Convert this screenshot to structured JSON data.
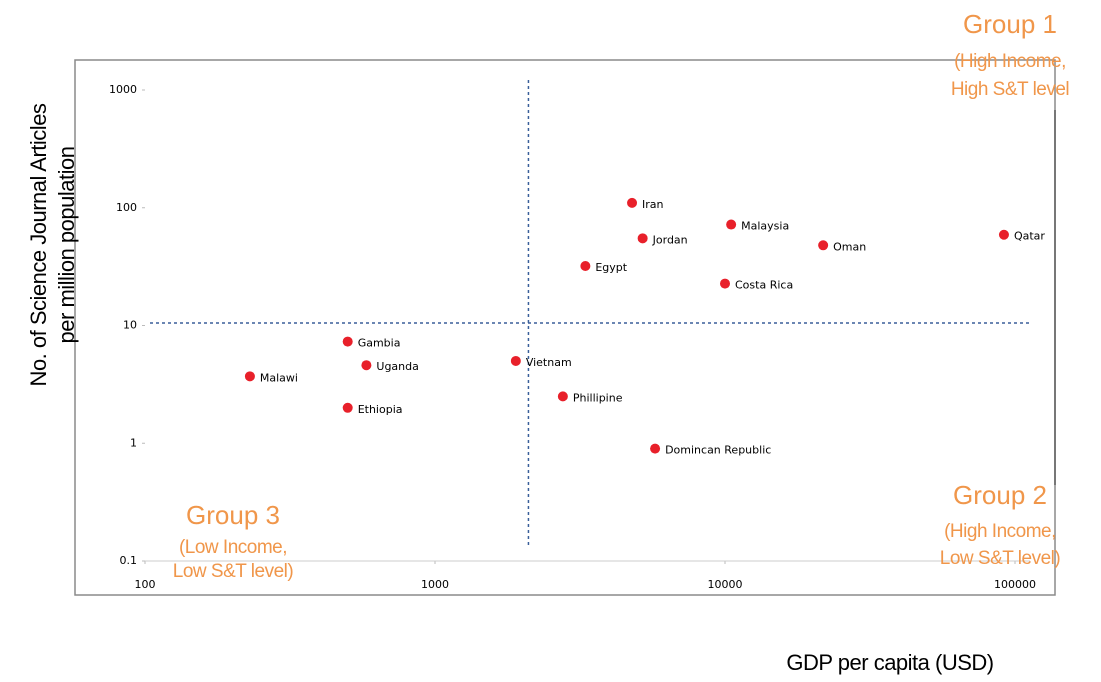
{
  "chart_data": {
    "type": "scatter",
    "x_label": "GDP per capita (USD)",
    "y_label": [
      "No. of Science Journal Articles",
      "per million population"
    ],
    "labels": [
      "Malawi",
      "Gambia",
      "Uganda",
      "Ethiopia",
      "Vietnam",
      "Phillipine",
      "Domincan Republic",
      "Egypt",
      "Iran",
      "Jordan",
      "Malaysia",
      "Costa Rica",
      "Oman",
      "Qatar"
    ],
    "x": [
      230,
      500,
      580,
      500,
      1900,
      2760,
      5740,
      3300,
      4780,
      5200,
      10500,
      10000,
      21800,
      91600
    ],
    "y": [
      3.7,
      7.3,
      4.6,
      2,
      5,
      2.5,
      0.9,
      32,
      110,
      55,
      72,
      22.7,
      48,
      59
    ],
    "color": "#e8202a",
    "xlim": [
      100,
      100000
    ],
    "ylim": [
      0.1,
      1000
    ],
    "xticks": [
      100,
      1000,
      10000,
      100000
    ],
    "yticks": [
      0.1,
      1,
      10,
      100,
      1000
    ],
    "xscale": "log",
    "yscale": "log",
    "vline": 2100,
    "hline": 10.5,
    "annotations": [
      {
        "title": "Group 1",
        "lines": [
          "(High Income,",
          "High S&T level"
        ]
      },
      {
        "title": "Group 2",
        "lines": [
          "(High Income,",
          "Low S&T level)"
        ]
      },
      {
        "title": "Group 3",
        "lines": [
          "(Low Income,",
          "Low S&T level)"
        ]
      }
    ]
  }
}
